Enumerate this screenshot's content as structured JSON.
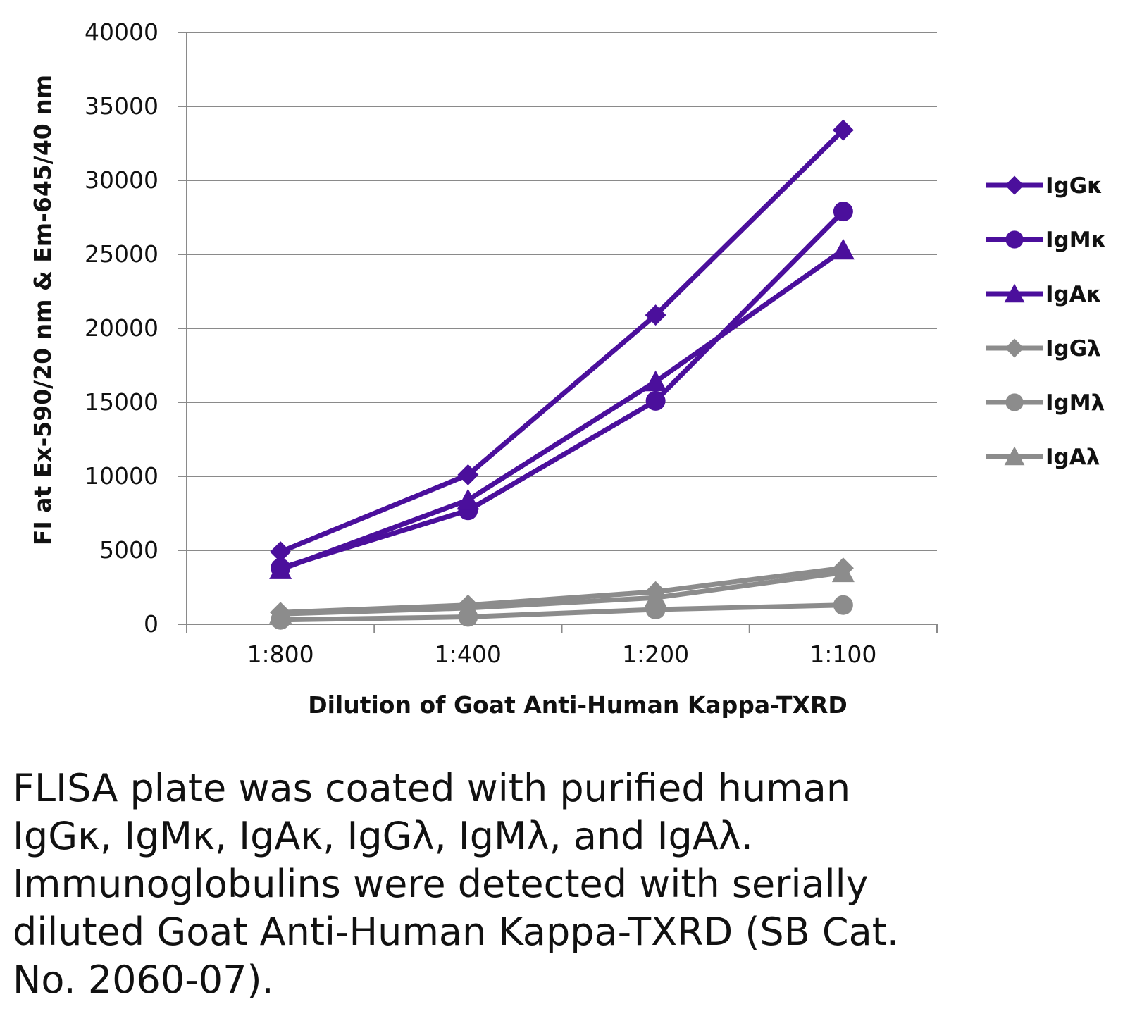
{
  "chart_data": {
    "type": "line",
    "categories": [
      "1:800",
      "1:400",
      "1:200",
      "1:100"
    ],
    "ylim": [
      0,
      40000
    ],
    "yticks": [
      0,
      5000,
      10000,
      15000,
      20000,
      25000,
      30000,
      35000,
      40000
    ],
    "ylabel": "FI at Ex-590/20 nm & Em-645/40 nm",
    "xlabel": "Dilution of Goat Anti-Human Kappa-TXRD",
    "grid": true,
    "legend_position": "right",
    "series": [
      {
        "name": "IgGκ",
        "marker": "diamond",
        "color": "#4b0f9c",
        "values": [
          4900,
          10100,
          20900,
          33400
        ]
      },
      {
        "name": "IgMκ",
        "marker": "circle",
        "color": "#4b0f9c",
        "values": [
          3800,
          7700,
          15100,
          27900
        ]
      },
      {
        "name": "IgAκ",
        "marker": "triangle",
        "color": "#4b0f9c",
        "values": [
          3700,
          8400,
          16400,
          25300
        ]
      },
      {
        "name": "IgGλ",
        "marker": "diamond",
        "color": "#8c8c8c",
        "values": [
          800,
          1300,
          2200,
          3800
        ]
      },
      {
        "name": "IgMλ",
        "marker": "circle",
        "color": "#8c8c8c",
        "values": [
          300,
          500,
          1000,
          1300
        ]
      },
      {
        "name": "IgAλ",
        "marker": "triangle",
        "color": "#8c8c8c",
        "values": [
          700,
          1100,
          1800,
          3500
        ]
      }
    ]
  },
  "caption": {
    "lines": [
      "FLISA plate was coated with purified human",
      "IgGκ, IgMκ, IgAκ, IgGλ, IgMλ, and IgAλ.",
      "Immunoglobulins were detected with serially",
      "diluted Goat Anti-Human Kappa-TXRD (SB Cat.",
      "No. 2060-07)."
    ]
  }
}
